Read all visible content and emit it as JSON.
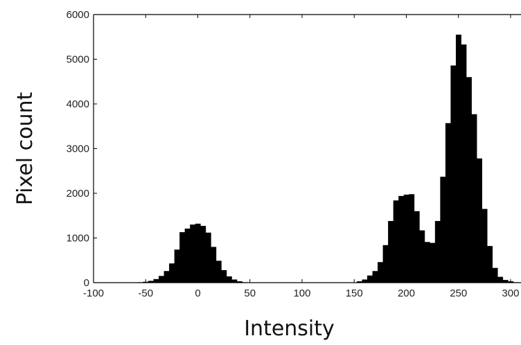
{
  "chart_data": {
    "type": "bar",
    "title": "",
    "xlabel": "Intensity",
    "ylabel": "Pixel count",
    "xlim": [
      -100,
      310
    ],
    "ylim": [
      0,
      6000
    ],
    "xticks": [
      "-100",
      "-50",
      "0",
      "50",
      "100",
      "150",
      "200",
      "250",
      "300"
    ],
    "yticks": [
      "0",
      "1000",
      "2000",
      "3000",
      "4000",
      "5000",
      "6000"
    ],
    "grid": false,
    "legend": "none",
    "bar_color": "#000000",
    "bin_width": 5,
    "bin_centers": [
      -60,
      -55,
      -50,
      -45,
      -40,
      -35,
      -30,
      -25,
      -20,
      -15,
      -10,
      -5,
      0,
      5,
      10,
      15,
      20,
      25,
      30,
      35,
      40,
      45,
      50,
      55,
      60,
      65,
      70,
      75,
      80,
      85,
      90,
      95,
      100,
      105,
      110,
      115,
      120,
      125,
      130,
      135,
      140,
      145,
      150,
      155,
      160,
      165,
      170,
      175,
      180,
      185,
      190,
      195,
      200,
      205,
      210,
      215,
      220,
      225,
      230,
      235,
      240,
      245,
      250,
      255,
      260,
      265,
      270,
      275,
      280,
      285,
      290,
      295,
      300,
      305,
      310
    ],
    "values": [
      5,
      10,
      20,
      40,
      80,
      150,
      260,
      430,
      740,
      1130,
      1210,
      1300,
      1320,
      1270,
      1120,
      800,
      490,
      280,
      140,
      70,
      30,
      10,
      5,
      5,
      5,
      5,
      5,
      5,
      5,
      5,
      5,
      5,
      5,
      5,
      5,
      5,
      5,
      5,
      5,
      5,
      5,
      5,
      5,
      30,
      70,
      160,
      260,
      460,
      840,
      1380,
      1840,
      1940,
      1970,
      1980,
      1600,
      1170,
      910,
      890,
      1380,
      2370,
      3570,
      4860,
      5550,
      5330,
      4600,
      3770,
      2780,
      1650,
      820,
      330,
      130,
      60,
      30,
      10,
      5
    ]
  }
}
